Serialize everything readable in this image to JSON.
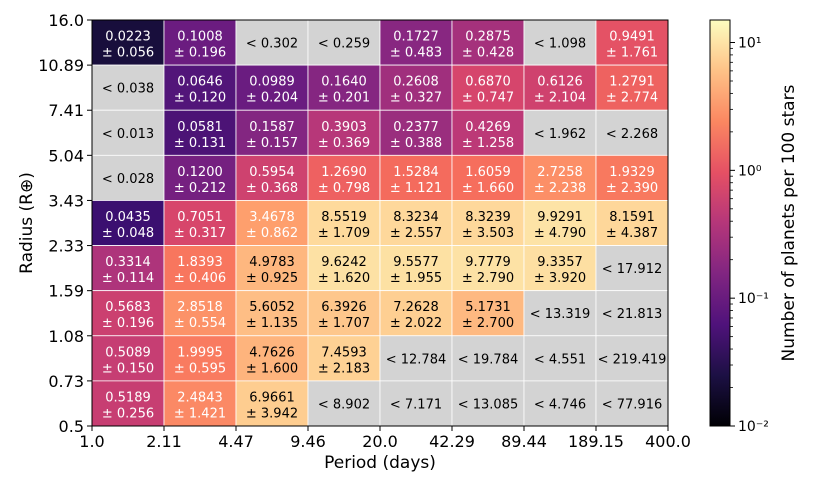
{
  "chart_data": {
    "type": "heatmap",
    "xlabel": "Period (days)",
    "ylabel": "Radius (R⊕)",
    "colorbar_label": "Number of planets per 100 stars",
    "colorbar_scale": "log",
    "colorbar_range": [
      0.01,
      15
    ],
    "colorbar_ticks": [
      {
        "value": 0.01,
        "label": "10⁻²"
      },
      {
        "value": 0.1,
        "label": "10⁻¹"
      },
      {
        "value": 1,
        "label": "10⁰"
      },
      {
        "value": 10,
        "label": "10¹"
      }
    ],
    "colormap": "magma",
    "missing_color": "#d3d3d3",
    "x_bin_edges": [
      "1.0",
      "2.11",
      "4.47",
      "9.46",
      "20.0",
      "42.29",
      "89.44",
      "189.15",
      "400.0"
    ],
    "y_bin_edges": [
      "0.5",
      "0.73",
      "1.08",
      "1.59",
      "2.33",
      "3.43",
      "5.04",
      "7.41",
      "10.89",
      "16.0"
    ],
    "rows": [
      {
        "radius_bin": "10.89–16.0",
        "cells": [
          {
            "value": 0.0223,
            "text": "0.0223",
            "err": "± 0.056"
          },
          {
            "value": 0.1008,
            "text": "0.1008",
            "err": "± 0.196"
          },
          {
            "upper": "< 0.302"
          },
          {
            "upper": "< 0.259"
          },
          {
            "value": 0.1727,
            "text": "0.1727",
            "err": "± 0.483"
          },
          {
            "value": 0.2875,
            "text": "0.2875",
            "err": "± 0.428"
          },
          {
            "upper": "< 1.098"
          },
          {
            "value": 0.9491,
            "text": "0.9491",
            "err": "± 1.761"
          }
        ]
      },
      {
        "radius_bin": "7.41–10.89",
        "cells": [
          {
            "upper": "< 0.038"
          },
          {
            "value": 0.0646,
            "text": "0.0646",
            "err": "± 0.120"
          },
          {
            "value": 0.0989,
            "text": "0.0989",
            "err": "± 0.204"
          },
          {
            "value": 0.164,
            "text": "0.1640",
            "err": "± 0.201"
          },
          {
            "value": 0.2608,
            "text": "0.2608",
            "err": "± 0.327"
          },
          {
            "value": 0.687,
            "text": "0.6870",
            "err": "± 0.747"
          },
          {
            "value": 0.6126,
            "text": "0.6126",
            "err": "± 2.104"
          },
          {
            "value": 1.2791,
            "text": "1.2791",
            "err": "± 2.774"
          }
        ]
      },
      {
        "radius_bin": "5.04–7.41",
        "cells": [
          {
            "upper": "< 0.013"
          },
          {
            "value": 0.0581,
            "text": "0.0581",
            "err": "± 0.131"
          },
          {
            "value": 0.1587,
            "text": "0.1587",
            "err": "± 0.157"
          },
          {
            "value": 0.3903,
            "text": "0.3903",
            "err": "± 0.369"
          },
          {
            "value": 0.2377,
            "text": "0.2377",
            "err": "± 0.388"
          },
          {
            "value": 0.4269,
            "text": "0.4269",
            "err": "± 1.258"
          },
          {
            "upper": "< 1.962"
          },
          {
            "upper": "< 2.268"
          }
        ]
      },
      {
        "radius_bin": "3.43–5.04",
        "cells": [
          {
            "upper": "< 0.028"
          },
          {
            "value": 0.12,
            "text": "0.1200",
            "err": "± 0.212"
          },
          {
            "value": 0.5954,
            "text": "0.5954",
            "err": "± 0.368"
          },
          {
            "value": 1.269,
            "text": "1.2690",
            "err": "± 0.798"
          },
          {
            "value": 1.5284,
            "text": "1.5284",
            "err": "± 1.121"
          },
          {
            "value": 1.6059,
            "text": "1.6059",
            "err": "± 1.660"
          },
          {
            "value": 2.7258,
            "text": "2.7258",
            "err": "± 2.238"
          },
          {
            "value": 1.9329,
            "text": "1.9329",
            "err": "± 2.390"
          }
        ]
      },
      {
        "radius_bin": "2.33–3.43",
        "cells": [
          {
            "value": 0.0435,
            "text": "0.0435",
            "err": "± 0.048"
          },
          {
            "value": 0.7051,
            "text": "0.7051",
            "err": "± 0.317"
          },
          {
            "value": 3.4678,
            "text": "3.4678",
            "err": "± 0.862"
          },
          {
            "value": 8.5519,
            "text": "8.5519",
            "err": "± 1.709"
          },
          {
            "value": 8.3234,
            "text": "8.3234",
            "err": "± 2.557"
          },
          {
            "value": 8.3239,
            "text": "8.3239",
            "err": "± 3.503"
          },
          {
            "value": 9.9291,
            "text": "9.9291",
            "err": "± 4.790"
          },
          {
            "value": 8.1591,
            "text": "8.1591",
            "err": "± 4.387"
          }
        ]
      },
      {
        "radius_bin": "1.59–2.33",
        "cells": [
          {
            "value": 0.3314,
            "text": "0.3314",
            "err": "± 0.114"
          },
          {
            "value": 1.8393,
            "text": "1.8393",
            "err": "± 0.406"
          },
          {
            "value": 4.9783,
            "text": "4.9783",
            "err": "± 0.925"
          },
          {
            "value": 9.6242,
            "text": "9.6242",
            "err": "± 1.620"
          },
          {
            "value": 9.5577,
            "text": "9.5577",
            "err": "± 1.955"
          },
          {
            "value": 9.7779,
            "text": "9.7779",
            "err": "± 2.790"
          },
          {
            "value": 9.3357,
            "text": "9.3357",
            "err": "± 3.920"
          },
          {
            "upper": "< 17.912"
          }
        ]
      },
      {
        "radius_bin": "1.08–1.59",
        "cells": [
          {
            "value": 0.5683,
            "text": "0.5683",
            "err": "± 0.196"
          },
          {
            "value": 2.8518,
            "text": "2.8518",
            "err": "± 0.554"
          },
          {
            "value": 5.6052,
            "text": "5.6052",
            "err": "± 1.135"
          },
          {
            "value": 6.3926,
            "text": "6.3926",
            "err": "± 1.707"
          },
          {
            "value": 7.2628,
            "text": "7.2628",
            "err": "± 2.022"
          },
          {
            "value": 5.1731,
            "text": "5.1731",
            "err": "± 2.700"
          },
          {
            "upper": "< 13.319"
          },
          {
            "upper": "< 21.813"
          }
        ]
      },
      {
        "radius_bin": "0.73–1.08",
        "cells": [
          {
            "value": 0.5089,
            "text": "0.5089",
            "err": "± 0.150"
          },
          {
            "value": 1.9995,
            "text": "1.9995",
            "err": "± 0.595"
          },
          {
            "value": 4.7626,
            "text": "4.7626",
            "err": "± 1.600"
          },
          {
            "value": 7.4593,
            "text": "7.4593",
            "err": "± 2.183"
          },
          {
            "upper": "< 12.784"
          },
          {
            "upper": "< 19.784"
          },
          {
            "upper": "< 4.551"
          },
          {
            "upper": "< 219.419"
          }
        ]
      },
      {
        "radius_bin": "0.5–0.73",
        "cells": [
          {
            "value": 0.5189,
            "text": "0.5189",
            "err": "± 0.256"
          },
          {
            "value": 2.4843,
            "text": "2.4843",
            "err": "± 1.421"
          },
          {
            "value": 6.9661,
            "text": "6.9661",
            "err": "± 3.942"
          },
          {
            "upper": "< 8.902"
          },
          {
            "upper": "< 7.171"
          },
          {
            "upper": "< 13.085"
          },
          {
            "upper": "< 4.746"
          },
          {
            "upper": "< 77.916"
          }
        ]
      }
    ]
  }
}
